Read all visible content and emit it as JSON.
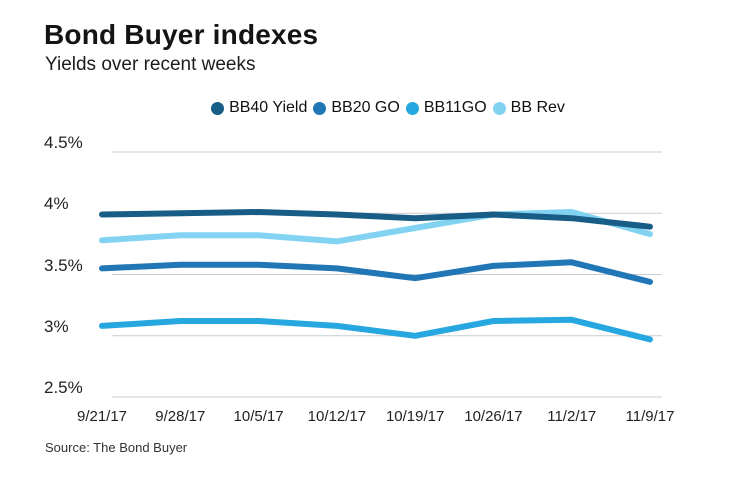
{
  "header": {
    "title": "Bond Buyer indexes",
    "subtitle": "Yields over recent weeks"
  },
  "source": "Source: The Bond Buyer",
  "colors": {
    "bb40_yield": "#175d86",
    "bb20_go": "#2176b5",
    "bb11go": "#27a7e0",
    "bb_rev": "#82d3f2",
    "gridline": "#c9cdd1"
  },
  "chart_data": {
    "type": "line",
    "title": "Bond Buyer indexes",
    "subtitle": "Yields over recent weeks",
    "xlabel": "",
    "ylabel": "",
    "grid": true,
    "legend_position": "top",
    "ylim": [
      2.5,
      4.5
    ],
    "y_ticks": [
      "4.5%",
      "4%",
      "3.5%",
      "3%",
      "2.5%"
    ],
    "y_tick_values": [
      4.5,
      4,
      3.5,
      3,
      2.5
    ],
    "x": [
      "9/21/17",
      "9/28/17",
      "10/5/17",
      "10/12/17",
      "10/19/17",
      "10/26/17",
      "11/2/17",
      "11/9/17"
    ],
    "series": [
      {
        "name": "BB40 Yield",
        "color": "#175d86",
        "values": [
          3.99,
          4.0,
          4.01,
          3.99,
          3.96,
          3.99,
          3.96,
          3.89
        ]
      },
      {
        "name": "BB20 GO",
        "color": "#2176b5",
        "values": [
          3.55,
          3.58,
          3.58,
          3.55,
          3.47,
          3.57,
          3.6,
          3.44
        ]
      },
      {
        "name": "BB11GO",
        "color": "#27a7e0",
        "values": [
          3.08,
          3.12,
          3.12,
          3.08,
          3.0,
          3.12,
          3.13,
          2.97
        ]
      },
      {
        "name": "BB Rev",
        "color": "#82d3f2",
        "values": [
          3.78,
          3.82,
          3.82,
          3.77,
          3.88,
          3.99,
          4.01,
          3.83
        ]
      }
    ]
  }
}
